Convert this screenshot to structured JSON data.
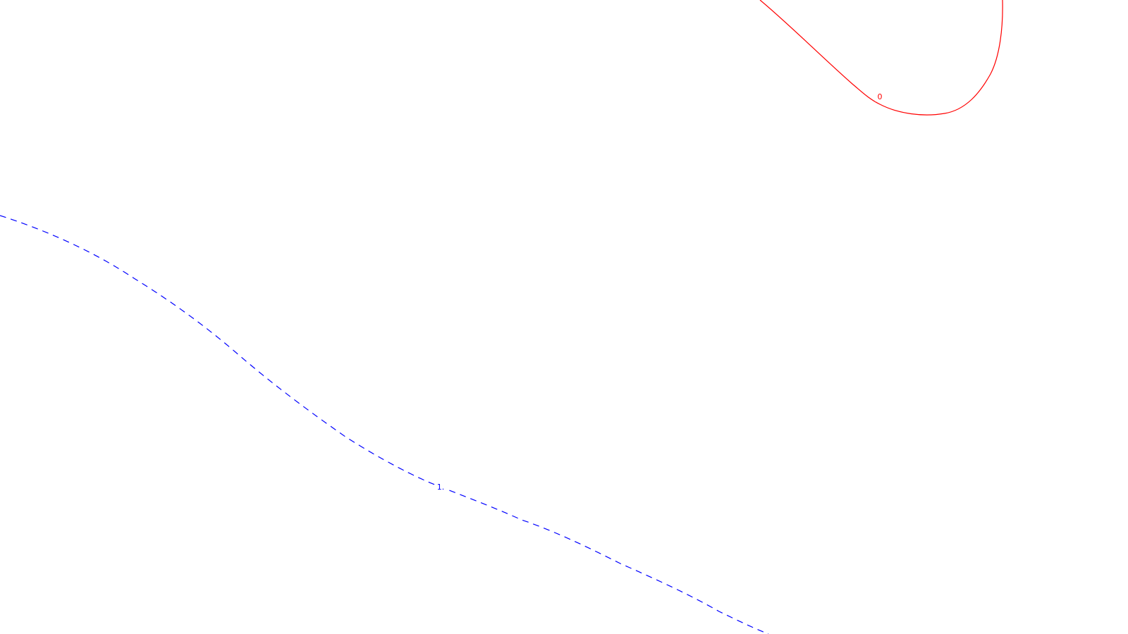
{
  "contours": [
    {
      "label": "0",
      "color": "#ff0000",
      "style": "solid"
    },
    {
      "label": "1.",
      "color": "#0000ff",
      "style": "dashed"
    }
  ]
}
